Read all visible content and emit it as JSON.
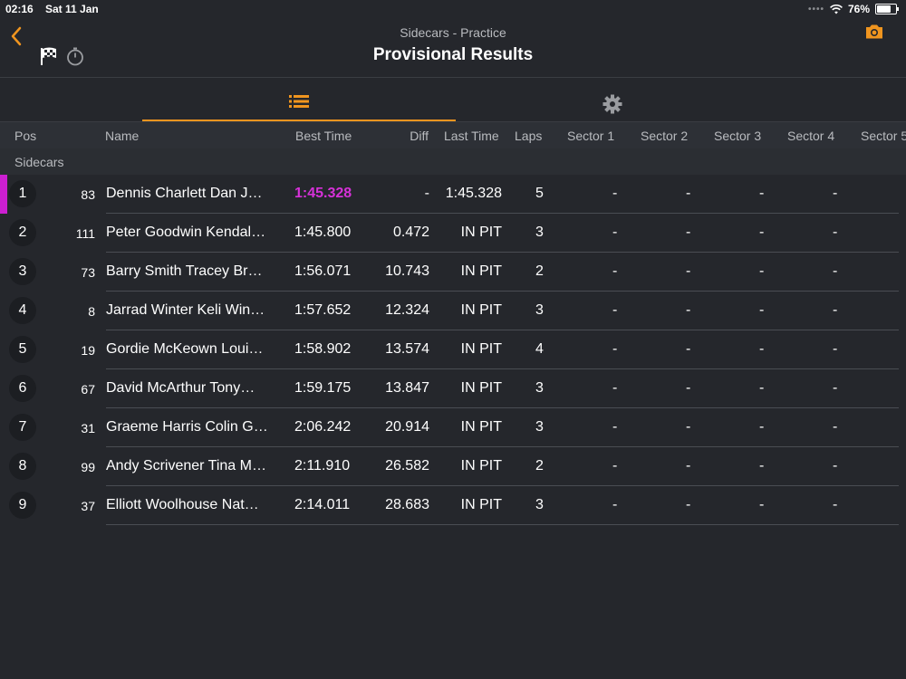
{
  "status_bar": {
    "time": "02:16",
    "date": "Sat 11 Jan",
    "signal": "••••",
    "battery": "76%",
    "battery_level": 0.76
  },
  "nav": {
    "subtitle": "Sidecars - Practice",
    "title": "Provisional Results"
  },
  "colors": {
    "accent": "#f0951f",
    "highlight": "#d631d8",
    "background": "#25272c"
  },
  "columns": {
    "pos": "Pos",
    "name": "Name",
    "best_time": "Best Time",
    "diff": "Diff",
    "last_time": "Last Time",
    "laps": "Laps",
    "sector1": "Sector 1",
    "sector2": "Sector 2",
    "sector3": "Sector 3",
    "sector4": "Sector 4",
    "sector5": "Sector 5"
  },
  "group_label": "Sidecars",
  "rows": [
    {
      "pos": "1",
      "num": "83",
      "name": "Dennis Charlett Dan J…",
      "best": "1:45.328",
      "diff": "-",
      "last": "1:45.328",
      "laps": "5",
      "s1": "-",
      "s2": "-",
      "s3": "-",
      "s4": "-"
    },
    {
      "pos": "2",
      "num": "111",
      "name": "Peter Goodwin Kendal…",
      "best": "1:45.800",
      "diff": "0.472",
      "last": "IN PIT",
      "laps": "3",
      "s1": "-",
      "s2": "-",
      "s3": "-",
      "s4": "-"
    },
    {
      "pos": "3",
      "num": "73",
      "name": "Barry Smith Tracey Br…",
      "best": "1:56.071",
      "diff": "10.743",
      "last": "IN PIT",
      "laps": "2",
      "s1": "-",
      "s2": "-",
      "s3": "-",
      "s4": "-"
    },
    {
      "pos": "4",
      "num": "8",
      "name": "Jarrad Winter Keli Win…",
      "best": "1:57.652",
      "diff": "12.324",
      "last": "IN PIT",
      "laps": "3",
      "s1": "-",
      "s2": "-",
      "s3": "-",
      "s4": "-"
    },
    {
      "pos": "5",
      "num": "19",
      "name": "Gordie McKeown Loui…",
      "best": "1:58.902",
      "diff": "13.574",
      "last": "IN PIT",
      "laps": "4",
      "s1": "-",
      "s2": "-",
      "s3": "-",
      "s4": "-"
    },
    {
      "pos": "6",
      "num": "67",
      "name": "David McArthur Tony…",
      "best": "1:59.175",
      "diff": "13.847",
      "last": "IN PIT",
      "laps": "3",
      "s1": "-",
      "s2": "-",
      "s3": "-",
      "s4": "-"
    },
    {
      "pos": "7",
      "num": "31",
      "name": "Graeme Harris Colin G…",
      "best": "2:06.242",
      "diff": "20.914",
      "last": "IN PIT",
      "laps": "3",
      "s1": "-",
      "s2": "-",
      "s3": "-",
      "s4": "-"
    },
    {
      "pos": "8",
      "num": "99",
      "name": "Andy Scrivener Tina M…",
      "best": "2:11.910",
      "diff": "26.582",
      "last": "IN PIT",
      "laps": "2",
      "s1": "-",
      "s2": "-",
      "s3": "-",
      "s4": "-"
    },
    {
      "pos": "9",
      "num": "37",
      "name": "Elliott Woolhouse Nat…",
      "best": "2:14.011",
      "diff": "28.683",
      "last": "IN PIT",
      "laps": "3",
      "s1": "-",
      "s2": "-",
      "s3": "-",
      "s4": "-"
    }
  ]
}
